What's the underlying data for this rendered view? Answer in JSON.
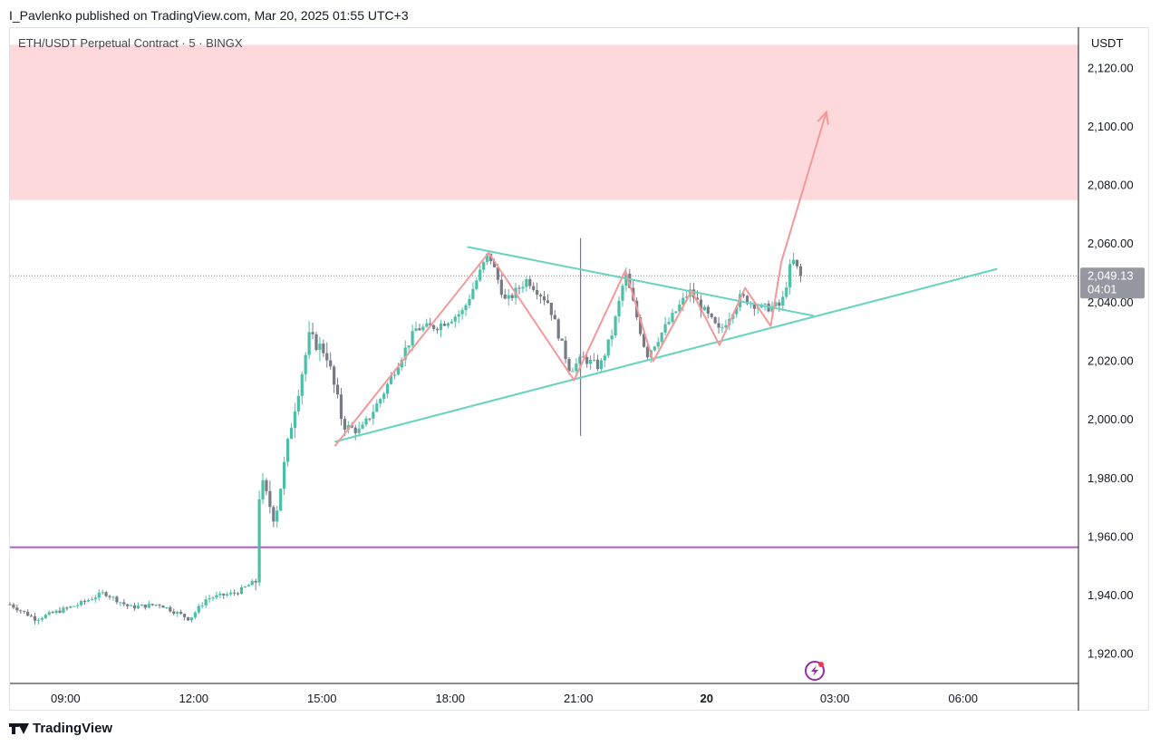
{
  "publish_line": "I_Pavlenko published on TradingView.com, Mar 20, 2025 01:55 UTC+3",
  "symbol_title": "ETH/USDT Perpetual Contract · 5 · BINGX",
  "footer_brand": "TradingView",
  "colors": {
    "up": "#4cbfa6",
    "down": "#787b86",
    "triangle": "#66d4bf",
    "path": "#f4989a",
    "zone": "#fdd9db",
    "support": "#b25fd6",
    "price_label_bg": "#9598a1"
  },
  "chart_data": {
    "type": "candlestick",
    "title": "ETH/USDT Perpetual Contract · 5 · BINGX",
    "currency": "USDT",
    "ylim": [
      1910,
      2134
    ],
    "y_ticks": [
      1920,
      1940,
      1960,
      1980,
      2000,
      2020,
      2040,
      2060,
      2080,
      2100,
      2120
    ],
    "y_tick_labels": [
      "1,920.00",
      "1,940.00",
      "1,960.00",
      "1,980.00",
      "2,000.00",
      "2,020.00",
      "2,040.00",
      "2,060.00",
      "2,080.00",
      "2,100.00",
      "2,120.00"
    ],
    "x_range_hours": [
      7.7,
      32.7
    ],
    "x_ticks": [
      9,
      12,
      15,
      18,
      21,
      24,
      27,
      30
    ],
    "x_tick_labels": [
      "09:00",
      "12:00",
      "15:00",
      "18:00",
      "21:00",
      "20",
      "03:00",
      "06:00"
    ],
    "x_tick_bold": [
      false,
      false,
      false,
      false,
      false,
      true,
      false,
      false
    ],
    "current_price": 2049.13,
    "current_price_label": "2,049.13",
    "countdown": "04:01",
    "resistance_zone": [
      2075,
      2128
    ],
    "support_level": 1956.5,
    "triangle_upper": [
      [
        18.4,
        2059
      ],
      [
        23.4,
        2044.5
      ],
      [
        26.5,
        2035.5
      ]
    ],
    "triangle_lower": [
      [
        15.3,
        1992.5
      ],
      [
        30.8,
        2051.5
      ]
    ],
    "projection_path": [
      [
        15.3,
        1991
      ],
      [
        18.9,
        2057
      ],
      [
        20.9,
        2013.5
      ],
      [
        22.1,
        2051
      ],
      [
        22.75,
        2020
      ],
      [
        23.65,
        2044
      ],
      [
        24.3,
        2025.5
      ],
      [
        24.9,
        2045
      ],
      [
        25.5,
        2032
      ],
      [
        25.75,
        2054
      ],
      [
        26.8,
        2105
      ]
    ],
    "spike_candle": {
      "t": 21.05,
      "high": 2062,
      "low": 1994.5
    },
    "price_anchors": [
      [
        7.7,
        1937
      ],
      [
        8.3,
        1932
      ],
      [
        9.3,
        1937
      ],
      [
        9.9,
        1941
      ],
      [
        10.5,
        1936
      ],
      [
        11.2,
        1937
      ],
      [
        11.9,
        1932
      ],
      [
        12.3,
        1939
      ],
      [
        13.0,
        1941
      ],
      [
        13.45,
        1945
      ],
      [
        13.55,
        1980
      ],
      [
        13.9,
        1966
      ],
      [
        14.3,
        2000
      ],
      [
        14.7,
        2028
      ],
      [
        15.1,
        2023
      ],
      [
        15.5,
        1998
      ],
      [
        15.9,
        1996
      ],
      [
        16.4,
        2008
      ],
      [
        16.8,
        2020
      ],
      [
        17.2,
        2031
      ],
      [
        17.7,
        2032
      ],
      [
        18.3,
        2037
      ],
      [
        18.9,
        2057
      ],
      [
        19.3,
        2040
      ],
      [
        19.8,
        2048
      ],
      [
        20.3,
        2040
      ],
      [
        20.8,
        2017
      ],
      [
        21.1,
        2021
      ],
      [
        21.5,
        2018
      ],
      [
        21.8,
        2030
      ],
      [
        22.1,
        2050
      ],
      [
        22.6,
        2022
      ],
      [
        23.1,
        2033
      ],
      [
        23.6,
        2044
      ],
      [
        24.3,
        2030
      ],
      [
        24.8,
        2042
      ],
      [
        25.3,
        2038
      ],
      [
        25.75,
        2039
      ],
      [
        26.0,
        2055
      ],
      [
        26.2,
        2049.13
      ]
    ]
  }
}
